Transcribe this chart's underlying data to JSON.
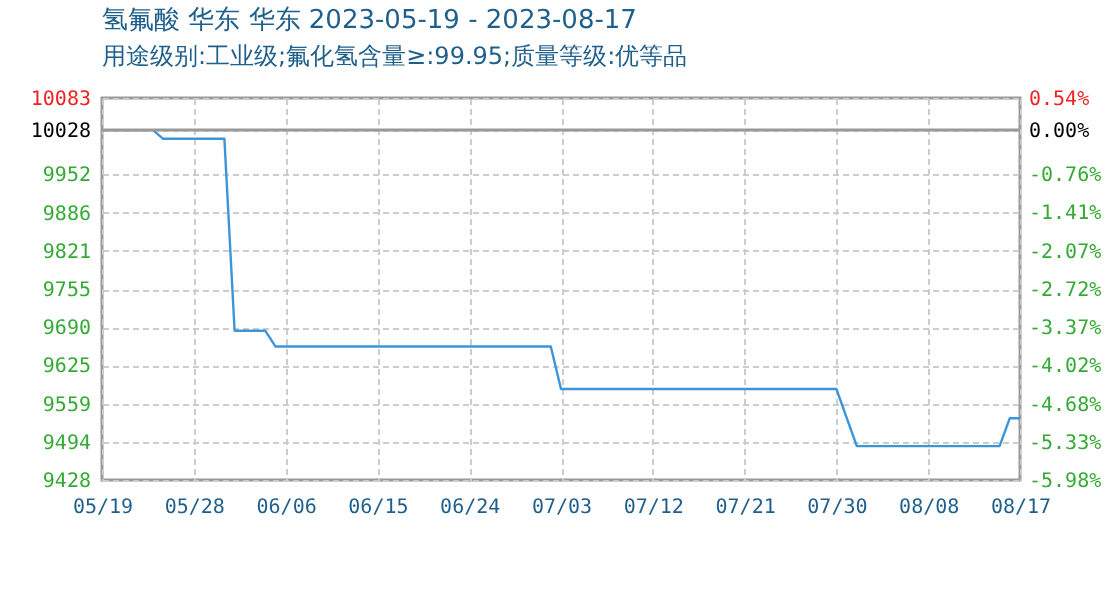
{
  "chart_data": {
    "type": "line",
    "title": "氢氟酸 华东 华东 2023-05-19 - 2023-08-17",
    "subtitle": "用途级别:工业级;氟化氢含量≥:99.95;质量等级:优等品",
    "x": [
      "2023-05-19",
      "2023-05-24",
      "2023-05-25",
      "2023-05-31",
      "2023-06-01",
      "2023-06-04",
      "2023-06-05",
      "2023-07-02",
      "2023-07-03",
      "2023-07-30",
      "2023-08-01",
      "2023-08-15",
      "2023-08-16",
      "2023-08-17"
    ],
    "series": [
      {
        "color": "#3a96d8",
        "values": [
          10028,
          10028,
          10013,
          10013,
          9684,
          9684,
          9657,
          9657,
          9584,
          9584,
          9486,
          9486,
          9534,
          9534
        ]
      }
    ],
    "xlim": [
      "2023-05-19",
      "2023-08-17"
    ],
    "xticks": [
      {
        "value": "2023-05-19",
        "label": "05/19"
      },
      {
        "value": "2023-05-28",
        "label": "05/28"
      },
      {
        "value": "2023-06-06",
        "label": "06/06"
      },
      {
        "value": "2023-06-15",
        "label": "06/15"
      },
      {
        "value": "2023-06-24",
        "label": "06/24"
      },
      {
        "value": "2023-07-03",
        "label": "07/03"
      },
      {
        "value": "2023-07-12",
        "label": "07/12"
      },
      {
        "value": "2023-07-21",
        "label": "07/21"
      },
      {
        "value": "2023-07-30",
        "label": "07/30"
      },
      {
        "value": "2023-08-08",
        "label": "08/08"
      },
      {
        "value": "2023-08-17",
        "label": "08/17"
      }
    ],
    "ylim": [
      9428,
      10083
    ],
    "yticks": [
      10083,
      10028,
      9952,
      9886,
      9821,
      9755,
      9690,
      9625,
      9559,
      9494,
      9428
    ],
    "y2lim": [
      -5.98,
      0.54
    ],
    "y2ticks": [
      {
        "value": 0.54,
        "label": "0.54%"
      },
      {
        "value": 0,
        "label": "0.00%"
      },
      {
        "value": -0.76,
        "label": "-0.76%"
      },
      {
        "value": -1.41,
        "label": "-1.41%"
      },
      {
        "value": -2.07,
        "label": "-2.07%"
      },
      {
        "value": -2.72,
        "label": "-2.72%"
      },
      {
        "value": -3.37,
        "label": "-3.37%"
      },
      {
        "value": -4.02,
        "label": "-4.02%"
      },
      {
        "value": -4.68,
        "label": "-4.68%"
      },
      {
        "value": -5.33,
        "label": "-5.33%"
      },
      {
        "value": -5.98,
        "label": "-5.98%"
      }
    ],
    "ref_lines": [
      {
        "axis": "y",
        "value": 10028,
        "color": "#999999"
      }
    ],
    "grid": true
  }
}
